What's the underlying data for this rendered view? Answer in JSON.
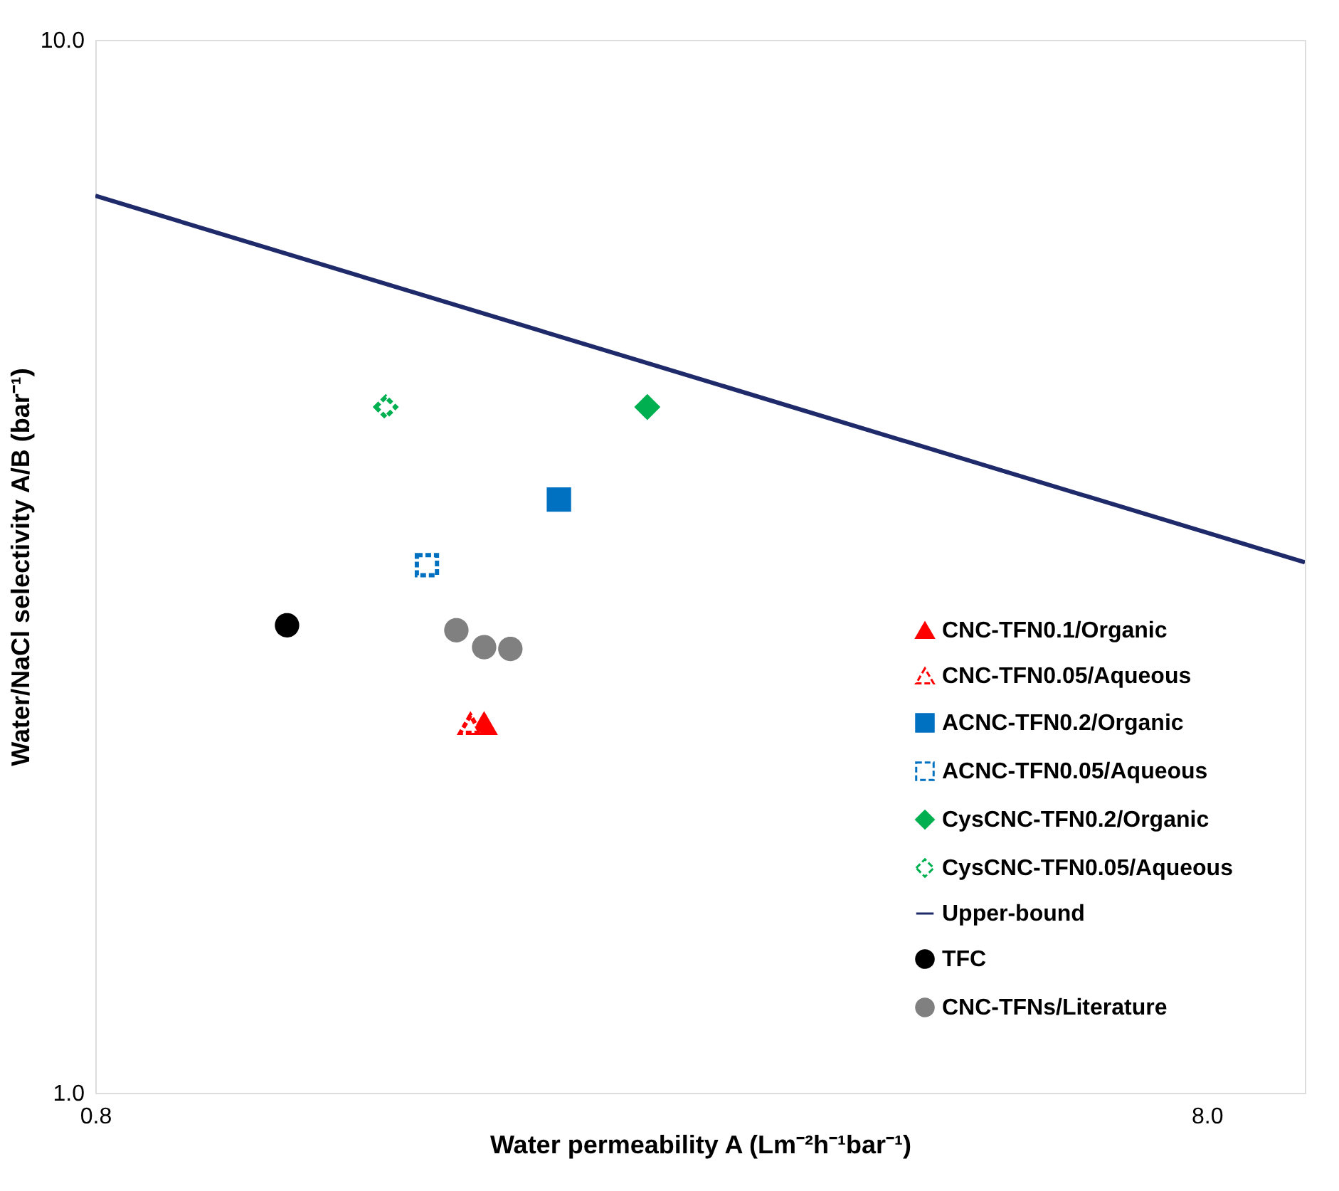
{
  "chart_data": {
    "type": "scatter",
    "xlabel": "Water permeability A (Lm⁻²h⁻¹bar⁻¹)",
    "ylabel": "Water/NaCl selectivity A/B (bar⁻¹)",
    "log": "xy",
    "grid": false,
    "legend": "bottom right",
    "xlim": [
      0.8,
      9.8
    ],
    "xticks": [
      {
        "value": 0.8,
        "label": "0.8"
      },
      {
        "value": 8,
        "label": "8.0"
      }
    ],
    "ylim": [
      1,
      10
    ],
    "yticks": [
      {
        "value": 1,
        "label": "1.0"
      },
      {
        "value": 10,
        "label": "10.0"
      }
    ],
    "series": [
      {
        "name": "CNC-TFN0.1/Organic",
        "color": "#ff0000",
        "marker": "triangle",
        "x": [
          1.79
        ],
        "values": [
          2.24
        ]
      },
      {
        "name": "CNC-TFN0.05/Aqueous",
        "color": "#ff0000",
        "marker": "triangle",
        "line_style": "dashed",
        "x": [
          1.74
        ],
        "values": [
          2.24
        ]
      },
      {
        "name": "ACNC-TFN0.2/Organic",
        "color": "#0070c0",
        "marker": "square",
        "x": [
          2.09
        ],
        "values": [
          3.66
        ]
      },
      {
        "name": "ACNC-TFN0.05/Aqueous",
        "color": "#0070c0",
        "marker": "square",
        "line_style": "dashed",
        "x": [
          1.59
        ],
        "values": [
          3.17
        ]
      },
      {
        "name": "CysCNC-TFN0.2/Organic",
        "color": "#00b050",
        "marker": "diamond",
        "x": [
          2.51
        ],
        "values": [
          4.48
        ]
      },
      {
        "name": "CysCNC-TFN0.05/Aqueous",
        "color": "#00b050",
        "marker": "diamond",
        "line_style": "dashed",
        "x": [
          1.46
        ],
        "values": [
          4.48
        ]
      },
      {
        "name": "Upper-bound",
        "type": "line",
        "color": "#1f2a6b",
        "x": [
          0.8,
          9.8
        ],
        "values": [
          7.11,
          3.19
        ]
      },
      {
        "name": "TFC",
        "color": "#000000",
        "marker": "circle",
        "x": [
          1.19
        ],
        "values": [
          2.78
        ]
      },
      {
        "name": "CNC-TFNs/Literature",
        "color": "#808080",
        "marker": "circle",
        "x": [
          1.69,
          1.79,
          1.89
        ],
        "values": [
          2.75,
          2.65,
          2.64
        ]
      }
    ]
  }
}
